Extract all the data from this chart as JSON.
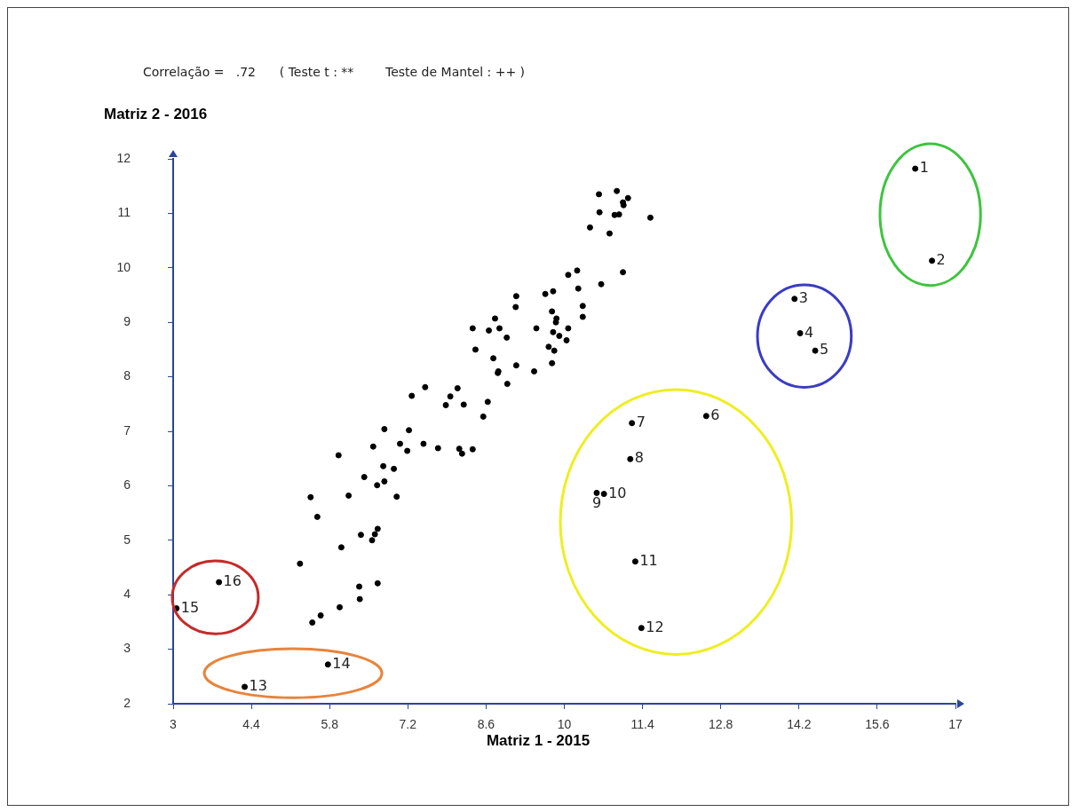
{
  "chart_data": {
    "type": "scatter",
    "title": "Correlação =   .72      ( Teste t : **        Teste de Mantel : ++ )",
    "xlabel": "Matriz 1 - 2015",
    "ylabel": "Matriz 2 - 2016",
    "color": "#000000",
    "marker": "circle",
    "xlim": [
      3,
      17
    ],
    "ylim": [
      2,
      12
    ],
    "xticks": [
      3,
      4.4,
      5.8,
      7.2,
      8.6,
      10,
      11.4,
      12.8,
      14.2,
      15.6,
      17
    ],
    "yticks": [
      2,
      3,
      4,
      5,
      6,
      7,
      8,
      9,
      10,
      11,
      12
    ],
    "x": [
      16.28,
      16.58,
      14.12,
      14.22,
      14.49,
      12.54,
      11.21,
      11.18,
      10.58,
      10.71,
      11.27,
      11.38,
      4.28,
      5.77,
      3.06,
      3.82,
      7.27,
      7.51,
      6.78,
      7.22,
      6.58,
      7.06,
      7.19,
      7.48,
      5.96,
      6.76,
      6.95,
      6.42,
      6.65,
      6.78,
      6.14,
      7.0,
      5.46,
      5.58,
      6.36,
      6.66,
      6.61,
      6.56,
      6.01,
      5.27,
      6.66,
      6.33,
      6.34,
      5.98,
      5.64,
      5.49,
      10.62,
      10.94,
      11.14,
      11.05,
      11.06,
      10.63,
      10.9,
      10.98,
      11.54,
      10.46,
      10.81,
      10.07,
      10.23,
      11.05,
      10.66,
      10.25,
      9.66,
      9.8,
      9.14,
      9.13,
      10.33,
      10.33,
      8.76,
      9.78,
      9.86,
      9.85,
      8.36,
      8.65,
      8.84,
      9.5,
      10.07,
      9.8,
      9.91,
      10.04,
      8.97,
      8.41,
      9.72,
      9.82,
      8.73,
      9.78,
      9.14,
      8.82,
      8.81,
      9.46,
      8.98,
      8.09,
      7.96,
      7.88,
      8.2,
      8.63,
      8.55,
      7.74,
      8.12,
      8.17,
      8.36
    ],
    "values": [
      11.82,
      10.13,
      9.43,
      8.8,
      8.48,
      7.28,
      7.15,
      6.49,
      5.87,
      5.85,
      4.61,
      3.39,
      2.31,
      2.72,
      3.75,
      4.23,
      7.65,
      7.81,
      7.04,
      7.02,
      6.72,
      6.77,
      6.64,
      6.77,
      6.56,
      6.36,
      6.31,
      6.16,
      6.01,
      6.08,
      5.82,
      5.8,
      5.79,
      5.43,
      5.1,
      5.21,
      5.11,
      5.0,
      4.87,
      4.57,
      4.21,
      4.15,
      3.92,
      3.77,
      3.62,
      3.49,
      11.35,
      11.41,
      11.28,
      11.2,
      11.15,
      11.02,
      10.97,
      10.98,
      10.92,
      10.74,
      10.63,
      9.87,
      9.95,
      9.92,
      9.7,
      9.62,
      9.52,
      9.57,
      9.48,
      9.28,
      9.3,
      9.1,
      9.07,
      9.2,
      9.07,
      9.0,
      8.89,
      8.85,
      8.89,
      8.89,
      8.89,
      8.82,
      8.75,
      8.67,
      8.72,
      8.5,
      8.55,
      8.48,
      8.34,
      8.25,
      8.21,
      8.1,
      8.07,
      8.1,
      7.87,
      7.79,
      7.64,
      7.48,
      7.49,
      7.54,
      7.27,
      6.69,
      6.68,
      6.59,
      6.67
    ],
    "annotations": [
      {
        "text": "1",
        "x": 16.28,
        "y": 11.82
      },
      {
        "text": "2",
        "x": 16.58,
        "y": 10.13
      },
      {
        "text": "3",
        "x": 14.12,
        "y": 9.43
      },
      {
        "text": "4",
        "x": 14.22,
        "y": 8.8
      },
      {
        "text": "5",
        "x": 14.49,
        "y": 8.48
      },
      {
        "text": "6",
        "x": 12.54,
        "y": 7.28
      },
      {
        "text": "7",
        "x": 11.21,
        "y": 7.15
      },
      {
        "text": "8",
        "x": 11.18,
        "y": 6.49
      },
      {
        "text": "9",
        "x": 10.58,
        "y": 5.87
      },
      {
        "text": "10",
        "x": 10.71,
        "y": 5.85
      },
      {
        "text": "11",
        "x": 11.27,
        "y": 4.61
      },
      {
        "text": "12",
        "x": 11.38,
        "y": 3.39
      },
      {
        "text": "13",
        "x": 4.28,
        "y": 2.31
      },
      {
        "text": "14",
        "x": 5.77,
        "y": 2.72
      },
      {
        "text": "15",
        "x": 3.06,
        "y": 3.75
      },
      {
        "text": "16",
        "x": 3.82,
        "y": 4.23
      }
    ]
  }
}
